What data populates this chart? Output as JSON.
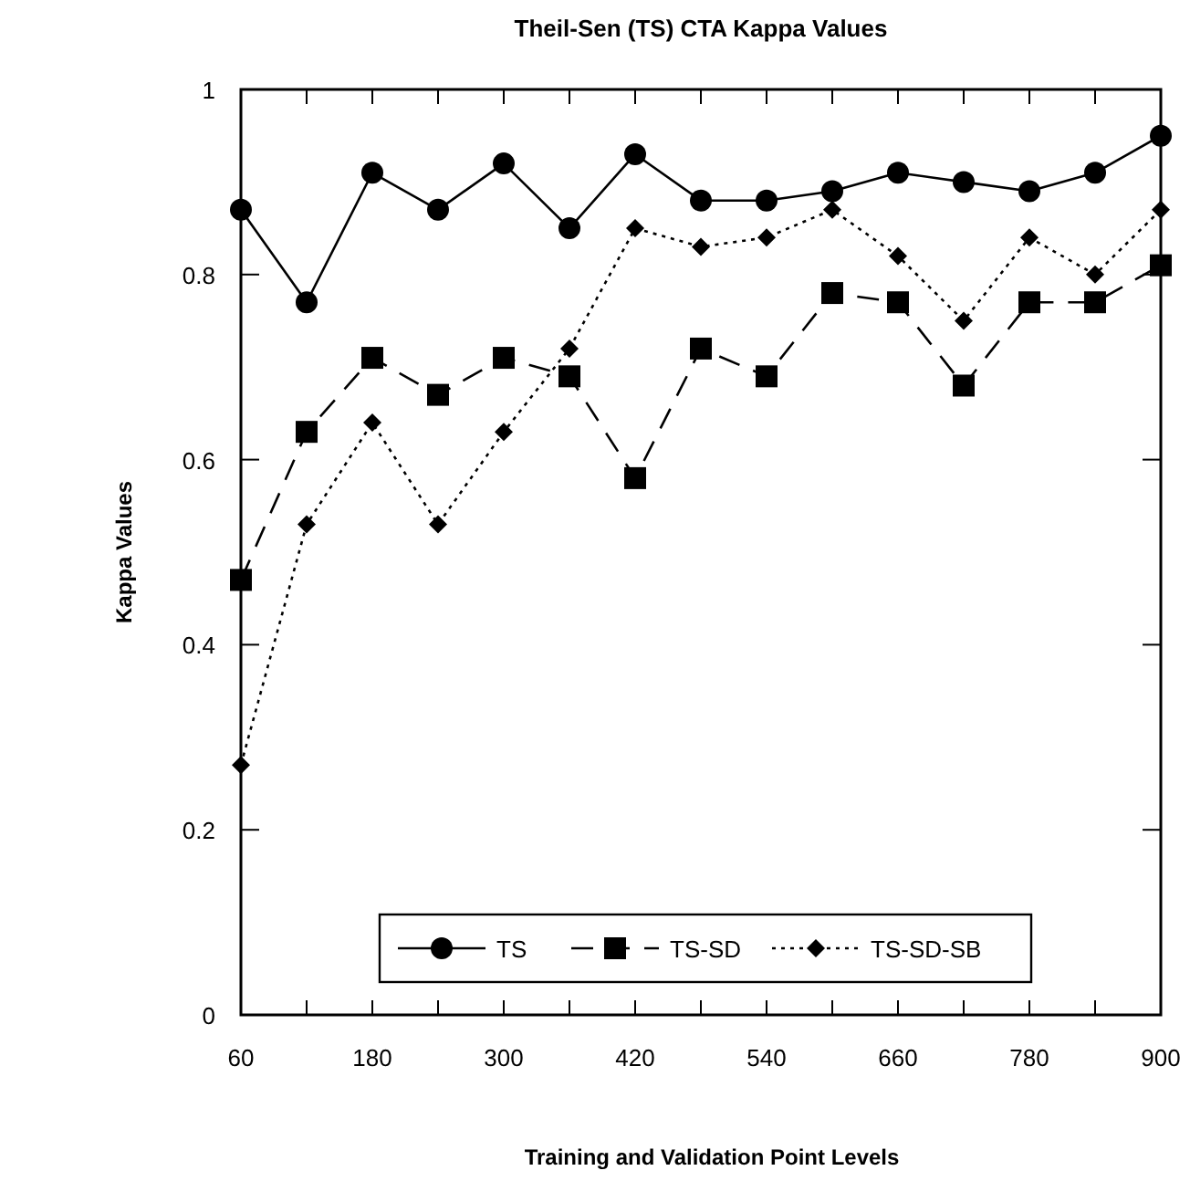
{
  "chart_data": {
    "type": "line",
    "title": "Theil-Sen (TS) CTA Kappa Values",
    "xlabel": "Training and Validation Point Levels",
    "ylabel": "Kappa Values",
    "x": [
      60,
      120,
      180,
      240,
      300,
      360,
      420,
      480,
      540,
      600,
      660,
      720,
      780,
      840,
      900
    ],
    "series": [
      {
        "name": "TS",
        "color": "#000000",
        "marker": "circle",
        "line_style": "solid",
        "values": [
          0.87,
          0.77,
          0.91,
          0.87,
          0.92,
          0.85,
          0.93,
          0.88,
          0.88,
          0.89,
          0.91,
          0.9,
          0.89,
          0.91,
          0.95
        ]
      },
      {
        "name": "TS-SD",
        "color": "#000000",
        "marker": "square",
        "line_style": "dashed",
        "values": [
          0.47,
          0.63,
          0.71,
          0.67,
          0.71,
          0.69,
          0.58,
          0.72,
          0.69,
          0.78,
          0.77,
          0.68,
          0.77,
          0.77,
          0.81
        ]
      },
      {
        "name": "TS-SD-SB",
        "color": "#000000",
        "marker": "diamond",
        "line_style": "dotted",
        "values": [
          0.27,
          0.53,
          0.64,
          0.53,
          0.63,
          0.72,
          0.85,
          0.83,
          0.84,
          0.87,
          0.82,
          0.75,
          0.84,
          0.8,
          0.87
        ]
      }
    ],
    "xlim": [
      60,
      900
    ],
    "ylim": [
      0,
      1
    ],
    "xticks": [
      60,
      {
        "value": 120,
        "label": null
      },
      180,
      {
        "value": 240,
        "label": null
      },
      300,
      {
        "value": 360,
        "label": null
      },
      420,
      {
        "value": 480,
        "label": null
      },
      540,
      {
        "value": 600,
        "label": null
      },
      660,
      {
        "value": 720,
        "label": null
      },
      780,
      {
        "value": 840,
        "label": null
      },
      900
    ],
    "yticks": [
      0,
      0.2,
      0.4,
      0.6,
      0.8,
      1
    ],
    "grid": false,
    "legend": "bottom"
  }
}
